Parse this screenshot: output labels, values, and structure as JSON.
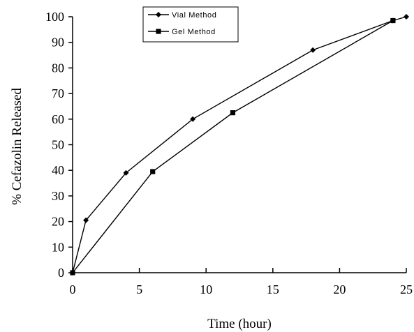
{
  "chart_data": {
    "type": "line",
    "title": "",
    "xlabel": "Time (hour)",
    "ylabel": "% Cefazolin Released",
    "xlim": [
      0,
      25
    ],
    "ylim": [
      0,
      100
    ],
    "xticks": [
      0,
      5,
      10,
      15,
      20,
      25
    ],
    "yticks": [
      0,
      10,
      20,
      30,
      40,
      50,
      60,
      70,
      80,
      90,
      100
    ],
    "grid": false,
    "legend_position": "top-center",
    "series": [
      {
        "name": "Vial Method",
        "marker": "diamond",
        "color": "#000000",
        "x": [
          0,
          1,
          4,
          9,
          18,
          24,
          25
        ],
        "y": [
          0,
          20.5,
          39,
          60,
          87,
          98.5,
          100
        ]
      },
      {
        "name": "Gel Method",
        "marker": "square",
        "color": "#000000",
        "x": [
          0,
          6,
          12,
          24
        ],
        "y": [
          0,
          39.5,
          62.5,
          98.5
        ]
      }
    ]
  }
}
